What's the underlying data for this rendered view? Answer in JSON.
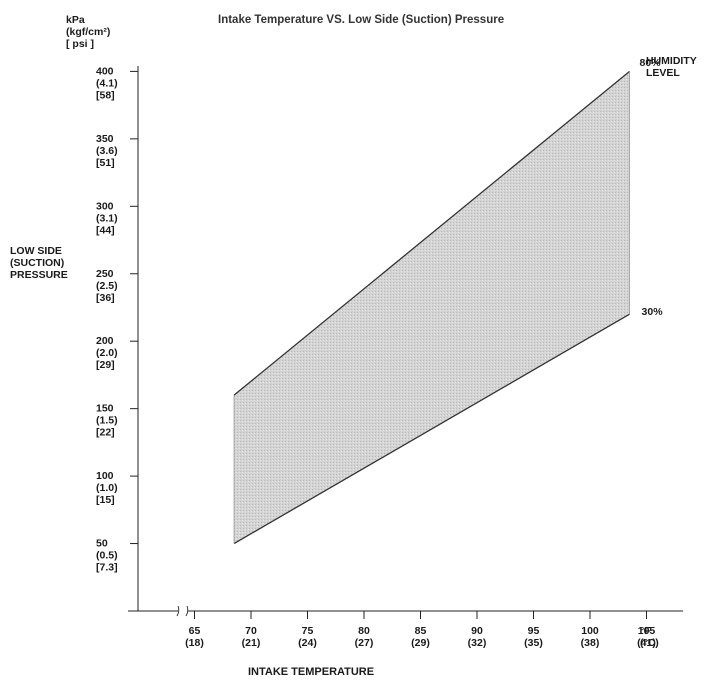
{
  "chart_data": {
    "type": "area",
    "title": "Intake Temperature VS. Low Side (Suction) Pressure",
    "ylabel_lines": [
      "LOW SIDE",
      "(SUCTION)",
      "PRESSURE"
    ],
    "y_unit_lines": [
      "kPa",
      "(kgf/cm²)",
      "[ psi ]"
    ],
    "xlabel": "INTAKE TEMPERATURE",
    "x_unit_lines": [
      "°F",
      "(°C)"
    ],
    "legend_title_lines": [
      "HUMIDITY",
      "LEVEL"
    ],
    "xlim": [
      60,
      110
    ],
    "ylim": [
      0,
      400
    ],
    "y_ticks": [
      {
        "value": 400,
        "lines": [
          "400",
          "(4.1)",
          "[58]"
        ]
      },
      {
        "value": 350,
        "lines": [
          "350",
          "(3.6)",
          "[51]"
        ]
      },
      {
        "value": 300,
        "lines": [
          "300",
          "(3.1)",
          "[44]"
        ]
      },
      {
        "value": 250,
        "lines": [
          "250",
          "(2.5)",
          "[36]"
        ]
      },
      {
        "value": 200,
        "lines": [
          "200",
          "(2.0)",
          "[29]"
        ]
      },
      {
        "value": 150,
        "lines": [
          "150",
          "(1.5)",
          "[22]"
        ]
      },
      {
        "value": 100,
        "lines": [
          "100",
          "(1.0)",
          "[15]"
        ]
      },
      {
        "value": 50,
        "lines": [
          "50",
          "(0.5)",
          "[7.3]"
        ]
      }
    ],
    "x_ticks": [
      {
        "value": 65,
        "lines": [
          "65",
          "(18)"
        ]
      },
      {
        "value": 70,
        "lines": [
          "70",
          "(21)"
        ]
      },
      {
        "value": 75,
        "lines": [
          "75",
          "(24)"
        ]
      },
      {
        "value": 80,
        "lines": [
          "80",
          "(27)"
        ]
      },
      {
        "value": 85,
        "lines": [
          "85",
          "(29)"
        ]
      },
      {
        "value": 90,
        "lines": [
          "90",
          "(32)"
        ]
      },
      {
        "value": 95,
        "lines": [
          "95",
          "(35)"
        ]
      },
      {
        "value": 100,
        "lines": [
          "100",
          "(38)"
        ]
      },
      {
        "value": 105,
        "lines": [
          "105",
          "(41)"
        ]
      }
    ],
    "series": [
      {
        "name": "80%",
        "x": [
          68.5,
          103.5
        ],
        "y": [
          160,
          400
        ]
      },
      {
        "name": "30%",
        "x": [
          68.5,
          103.5
        ],
        "y": [
          50,
          220
        ]
      }
    ],
    "fill_color": "#cfcfcf",
    "line_color": "#333333",
    "grid": false
  }
}
